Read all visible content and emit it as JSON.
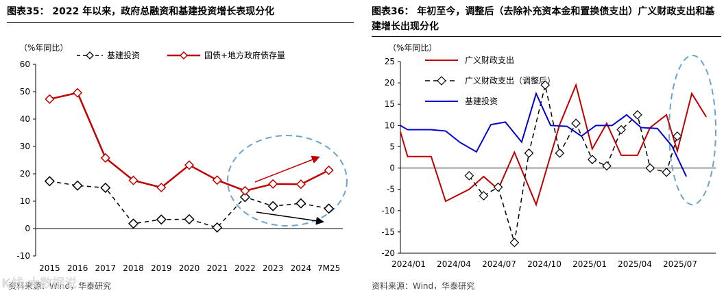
{
  "watermark": "K线 大数据说",
  "left_panel": {
    "title": "图表35：  2022 年以来，政府总融资和基建投资增长表现分化",
    "source": "资料来源：Wind，华泰研究",
    "chart_data": {
      "type": "line",
      "unit_label": "（%年同比）",
      "categories": [
        "2015",
        "2016",
        "2017",
        "2018",
        "2019",
        "2020",
        "2021",
        "2022",
        "2023",
        "2024",
        "7M25"
      ],
      "ylim": [
        -10,
        60
      ],
      "yticks": [
        -10,
        0,
        10,
        20,
        30,
        40,
        50,
        60
      ],
      "series": [
        {
          "name": "基建投资",
          "color": "#000000",
          "style": "dashed",
          "marker": "diamond",
          "values": [
            17.3,
            15.7,
            14.9,
            1.8,
            3.3,
            3.4,
            0.4,
            11.5,
            8.2,
            9.2,
            7.3
          ]
        },
        {
          "name": "国债+地方政府债存量",
          "color": "#c00000",
          "style": "solid",
          "marker": "diamond",
          "values": [
            47.3,
            49.6,
            25.8,
            17.6,
            15.0,
            23.2,
            17.7,
            13.8,
            16.3,
            16.2,
            21.3
          ]
        }
      ]
    }
  },
  "right_panel": {
    "title": "图表36：  年初至今，调整后（去除补充资本金和置换债支出）广义财政支出和基建增长出现分化",
    "source": "资料来源：Wind，华泰研究",
    "chart_data": {
      "type": "line",
      "unit_label": "（%年同比）",
      "x_tick_labels": [
        "2024/01",
        "2024/04",
        "2024/07",
        "2024/10",
        "2025/01",
        "2025/04",
        "2025/07"
      ],
      "ylim": [
        -20,
        25
      ],
      "yticks": [
        -20,
        -15,
        -10,
        -5,
        0,
        5,
        10,
        15,
        20,
        25
      ],
      "series": [
        {
          "name": "广义财政支出",
          "color": "#c00000",
          "style": "solid",
          "points": [
            [
              2024.0,
              8.5
            ],
            [
              2024.04,
              2.7
            ],
            [
              2024.17,
              2.7
            ],
            [
              2024.25,
              -7.8
            ],
            [
              2024.38,
              -5.0
            ],
            [
              2024.46,
              -2.0
            ],
            [
              2024.54,
              -5.0
            ],
            [
              2024.63,
              3.7
            ],
            [
              2024.75,
              -8.6
            ],
            [
              2024.88,
              10.2
            ],
            [
              2024.97,
              19.5
            ],
            [
              2025.06,
              4.5
            ],
            [
              2025.14,
              10.5
            ],
            [
              2025.22,
              3.0
            ],
            [
              2025.31,
              3.0
            ],
            [
              2025.38,
              9.5
            ],
            [
              2025.47,
              12.5
            ],
            [
              2025.53,
              4.0
            ],
            [
              2025.61,
              17.5
            ],
            [
              2025.69,
              12.0
            ]
          ]
        },
        {
          "name": "广义财政支出（调整后）",
          "color": "#000000",
          "style": "dashed",
          "marker": "diamond",
          "points": [
            [
              2024.38,
              -1.8
            ],
            [
              2024.46,
              -6.5
            ],
            [
              2024.54,
              -4.5
            ],
            [
              2024.63,
              -17.5
            ],
            [
              2024.71,
              3.5
            ],
            [
              2024.8,
              19.5
            ],
            [
              2024.88,
              3.5
            ],
            [
              2024.97,
              10.5
            ],
            [
              2025.06,
              2.0
            ],
            [
              2025.14,
              0.5
            ],
            [
              2025.22,
              9.0
            ],
            [
              2025.31,
              12.5
            ],
            [
              2025.38,
              0.0
            ],
            [
              2025.47,
              -1.0
            ],
            [
              2025.53,
              7.5
            ]
          ]
        },
        {
          "name": "基建投资",
          "color": "#0000cc",
          "style": "solid",
          "points": [
            [
              2024.0,
              10.0
            ],
            [
              2024.04,
              9.0
            ],
            [
              2024.17,
              9.0
            ],
            [
              2024.25,
              8.7
            ],
            [
              2024.33,
              6.0
            ],
            [
              2024.42,
              3.8
            ],
            [
              2024.5,
              10.2
            ],
            [
              2024.58,
              10.8
            ],
            [
              2024.67,
              6.1
            ],
            [
              2024.75,
              17.5
            ],
            [
              2024.83,
              10.0
            ],
            [
              2024.92,
              9.8
            ],
            [
              2025.0,
              7.5
            ],
            [
              2025.08,
              10.0
            ],
            [
              2025.17,
              10.0
            ],
            [
              2025.25,
              12.5
            ],
            [
              2025.33,
              9.5
            ],
            [
              2025.42,
              9.3
            ],
            [
              2025.5,
              5.2
            ],
            [
              2025.58,
              -2.0
            ]
          ]
        }
      ]
    }
  }
}
